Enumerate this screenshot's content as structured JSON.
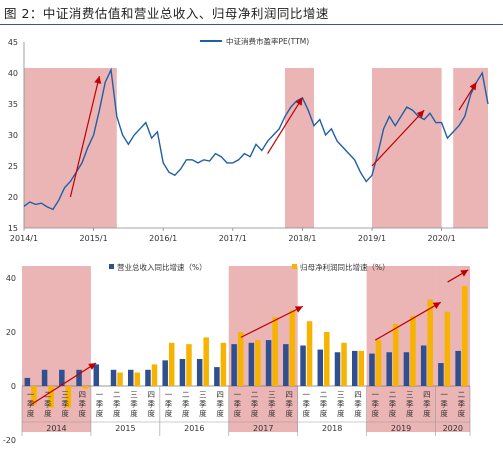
{
  "title": "图 2：中证消费估值和营业总收入、归母净利润同比增速",
  "colors": {
    "pe_line": "#1f5fa8",
    "revenue": "#2f4f8f",
    "profit": "#f6b400",
    "shade": "#e8a8a8",
    "arrow": "#c00000",
    "axis": "#555555"
  },
  "chart_data": [
    {
      "type": "line",
      "series": [
        {
          "name": "中证消费市盈率PE(TTM)",
          "x": [
            "2014/1",
            "2014/2",
            "2014/3",
            "2014/4",
            "2014/5",
            "2014/6",
            "2014/7",
            "2014/8",
            "2014/9",
            "2014/10",
            "2014/11",
            "2014/12",
            "2015/1",
            "2015/2",
            "2015/3",
            "2015/4",
            "2015/5",
            "2015/6",
            "2015/7",
            "2015/8",
            "2015/9",
            "2015/10",
            "2015/11",
            "2015/12",
            "2016/1",
            "2016/2",
            "2016/3",
            "2016/4",
            "2016/5",
            "2016/6",
            "2016/7",
            "2016/8",
            "2016/9",
            "2016/10",
            "2016/11",
            "2016/12",
            "2017/1",
            "2017/2",
            "2017/3",
            "2017/4",
            "2017/5",
            "2017/6",
            "2017/7",
            "2017/8",
            "2017/9",
            "2017/10",
            "2017/11",
            "2017/12",
            "2018/1",
            "2018/2",
            "2018/3",
            "2018/4",
            "2018/5",
            "2018/6",
            "2018/7",
            "2018/8",
            "2018/9",
            "2018/10",
            "2018/11",
            "2018/12",
            "2019/1",
            "2019/2",
            "2019/3",
            "2019/4",
            "2019/5",
            "2019/6",
            "2019/7",
            "2019/8",
            "2019/9",
            "2019/10",
            "2019/11",
            "2019/12",
            "2020/1",
            "2020/2",
            "2020/3",
            "2020/4",
            "2020/5",
            "2020/6",
            "2020/7",
            "2020/8",
            "2020/9"
          ],
          "y": [
            18.5,
            19.2,
            18.8,
            19.0,
            18.4,
            18.0,
            19.5,
            21.5,
            22.5,
            24.0,
            25.5,
            28.0,
            30.0,
            34.0,
            38.5,
            40.5,
            33.0,
            30.0,
            28.5,
            30.0,
            31.0,
            32.0,
            29.5,
            30.5,
            25.5,
            24.0,
            23.5,
            24.5,
            26.0,
            26.0,
            25.5,
            26.0,
            25.8,
            27.0,
            26.5,
            25.5,
            25.5,
            26.0,
            27.0,
            26.5,
            28.5,
            27.5,
            29.0,
            30.0,
            31.0,
            33.0,
            34.5,
            35.5,
            36.0,
            34.0,
            31.5,
            32.5,
            30.0,
            31.0,
            29.0,
            28.0,
            27.0,
            26.0,
            24.0,
            22.5,
            23.5,
            27.0,
            31.0,
            33.0,
            31.5,
            33.0,
            34.5,
            34.0,
            33.0,
            32.5,
            33.5,
            32.0,
            32.0,
            29.5,
            30.5,
            31.5,
            33.0,
            36.5,
            38.5,
            40.0,
            35.0
          ]
        }
      ],
      "ylim": [
        15,
        45
      ],
      "yticks": [
        15,
        20,
        25,
        30,
        35,
        40,
        45
      ],
      "xticks": [
        "2014/1",
        "2015/1",
        "2016/1",
        "2017/1",
        "2018/1",
        "2019/1",
        "2020/1"
      ],
      "shaded_periods": [
        [
          "2014/1",
          "2015/5"
        ],
        [
          "2017/10",
          "2018/3"
        ],
        [
          "2019/1",
          "2020/1"
        ],
        [
          "2020/3",
          "2020/9"
        ]
      ],
      "arrows": [
        {
          "from": [
            "2014/9",
            20
          ],
          "to": [
            "2015/2",
            39.5
          ]
        },
        {
          "from": [
            "2017/7",
            27
          ],
          "to": [
            "2018/1",
            36
          ]
        },
        {
          "from": [
            "2019/1",
            25
          ],
          "to": [
            "2019/10",
            34
          ]
        },
        {
          "from": [
            "2020/4",
            34
          ],
          "to": [
            "2020/7",
            38.5
          ]
        }
      ]
    },
    {
      "type": "bar",
      "categories": [
        "2014Q1",
        "2014Q2",
        "2014Q3",
        "2014Q4",
        "2015Q1",
        "2015Q2",
        "2015Q3",
        "2015Q4",
        "2016Q1",
        "2016Q2",
        "2016Q3",
        "2016Q4",
        "2017Q1",
        "2017Q2",
        "2017Q3",
        "2017Q4",
        "2018Q1",
        "2018Q2",
        "2018Q3",
        "2018Q4",
        "2019Q1",
        "2019Q2",
        "2019Q3",
        "2019Q4",
        "2020Q1",
        "2020Q2"
      ],
      "quarter_labels": [
        "一季度",
        "二季度",
        "三季度",
        "四季度",
        "一季度",
        "二季度",
        "三季度",
        "四季度",
        "一季度",
        "二季度",
        "三季度",
        "四季度",
        "一季度",
        "二季度",
        "三季度",
        "四季度",
        "一季度",
        "二季度",
        "三季度",
        "四季度",
        "一季度",
        "二季度",
        "三季度",
        "四季度",
        "一季度",
        "二季度"
      ],
      "year_labels": [
        "2014",
        "2015",
        "2016",
        "2017",
        "2018",
        "2019",
        "2020"
      ],
      "series": [
        {
          "name": "营业总收入同比增速（%）",
          "values": [
            3,
            6,
            6,
            6,
            8,
            6,
            6,
            6,
            9.5,
            10,
            10,
            7,
            15.5,
            16,
            17,
            15.5,
            15,
            13.5,
            12.5,
            13,
            12,
            12.5,
            12.5,
            15,
            8.5,
            13
          ]
        },
        {
          "name": "归母净利润同比增速（%）",
          "values": [
            -7,
            -8,
            -8,
            -1,
            0,
            5,
            5,
            8,
            16,
            15.5,
            18,
            16,
            20,
            17,
            25.5,
            28,
            24,
            20,
            16,
            13,
            17,
            23,
            26,
            32,
            27.5,
            37
          ]
        }
      ],
      "ylim": [
        -20,
        40
      ],
      "yticks": [
        -20,
        0,
        20,
        40
      ],
      "shaded_groups": [
        [
          0,
          3
        ],
        [
          12,
          15
        ],
        [
          20,
          23
        ],
        [
          24,
          25
        ]
      ],
      "arrows": [
        {
          "from": [
            0,
            -7
          ],
          "to": [
            3.8,
            8.5
          ]
        },
        {
          "from": [
            12.2,
            18
          ],
          "to": [
            15.8,
            29.5
          ]
        },
        {
          "from": [
            20,
            17
          ],
          "to": [
            23.8,
            31
          ]
        },
        {
          "from": [
            24.2,
            38.5
          ],
          "to": [
            25.4,
            43
          ]
        }
      ]
    }
  ]
}
